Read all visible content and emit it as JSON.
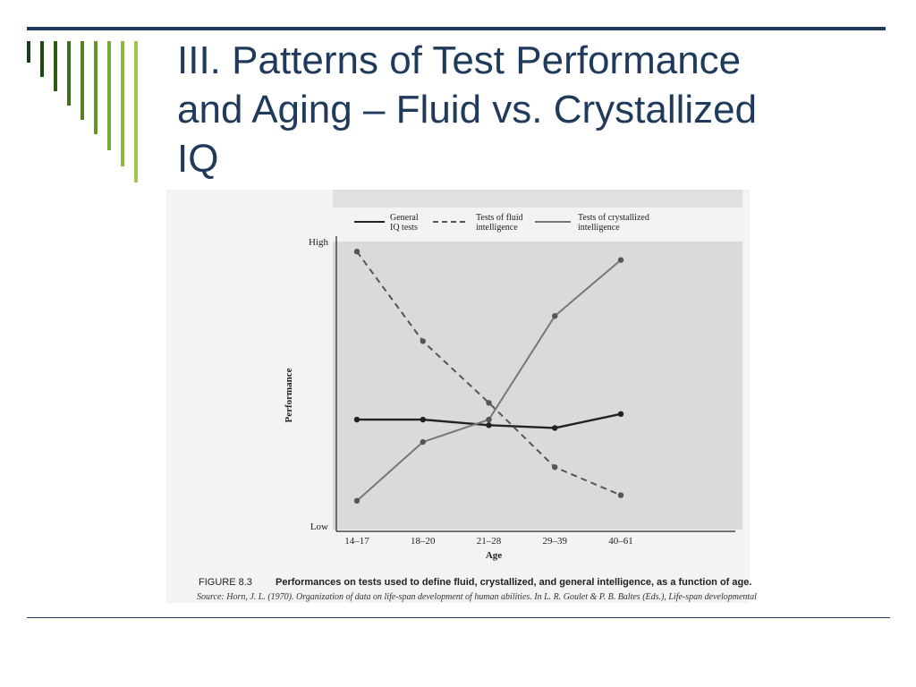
{
  "slide": {
    "title_lines": [
      "III. Patterns of Test Performance",
      "and Aging – Fluid vs. Crystallized",
      "IQ"
    ]
  },
  "theme": {
    "title_color": "#1f3a5a",
    "rule_color": "#1f3a5a",
    "bar_colors": [
      "#1a3d1a",
      "#1e4a12",
      "#2b5c10",
      "#3d7018",
      "#4f841f",
      "#62962a",
      "#76aa30",
      "#8ab83a",
      "#a0c848"
    ]
  },
  "figure": {
    "caption_number": "FIGURE 8.3",
    "caption_text": "Performances on tests used to define fluid, crystallized, and general intelligence, as a function of age.",
    "source": "Source: Horn, J. L. (1970). Organization of data on life-span development of human abilities. In L. R. Goulet & P. B. Baltes (Eds.), Life-span developmental"
  },
  "chart_data": {
    "type": "line",
    "xlabel": "Age",
    "ylabel": "Performance",
    "y_high_label": "High",
    "y_low_label": "Low",
    "categories": [
      "14–17",
      "18–20",
      "21–28",
      "29–39",
      "40–61"
    ],
    "ylim": [
      0,
      100
    ],
    "legend_position": "top",
    "series": [
      {
        "name": "General IQ tests",
        "style": "solid",
        "color": "#222222",
        "values": [
          38,
          38,
          36,
          35,
          40
        ]
      },
      {
        "name": "Tests of fluid intelligence",
        "style": "dashed",
        "color": "#555555",
        "values": [
          98,
          66,
          44,
          21,
          11
        ]
      },
      {
        "name": "Tests of crystallized intelligence",
        "style": "solid",
        "color": "#777777",
        "values": [
          9,
          30,
          38,
          75,
          95
        ]
      }
    ],
    "legend_lines": [
      [
        "General",
        "IQ tests"
      ],
      [
        "Tests of fluid",
        "intelligence"
      ],
      [
        "Tests of crystallized",
        "intelligence"
      ]
    ]
  }
}
